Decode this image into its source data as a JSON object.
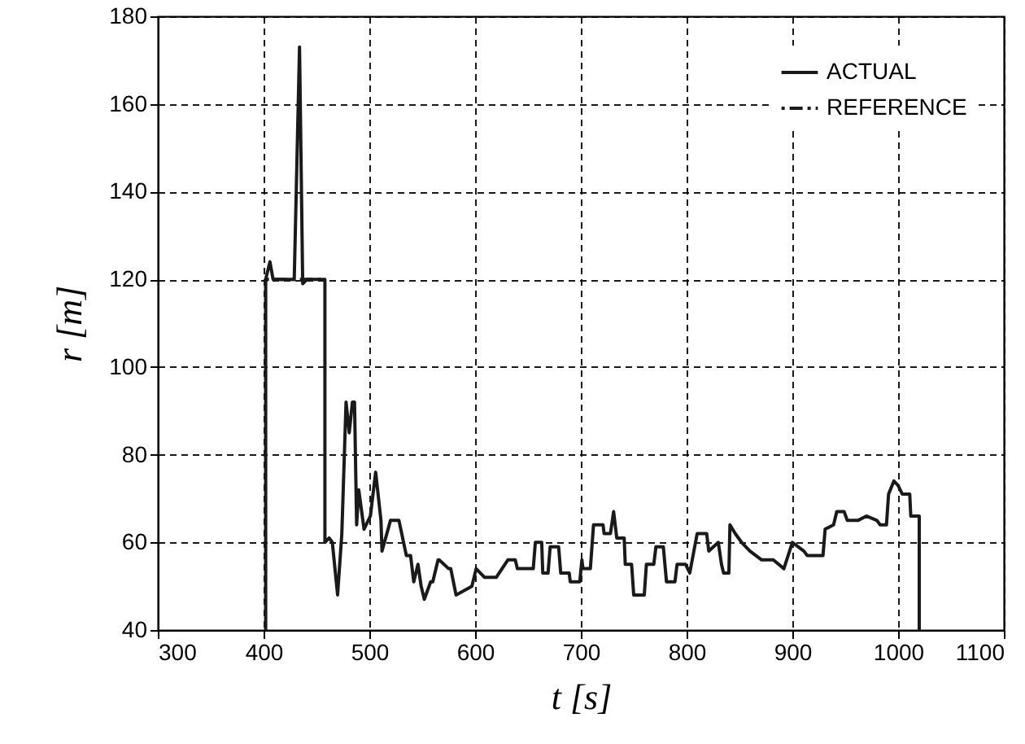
{
  "chart_data": {
    "type": "line",
    "xlabel": "t [s]",
    "ylabel": "r [m]",
    "xlim": [
      300,
      1100
    ],
    "ylim": [
      40,
      180
    ],
    "xticks": [
      300,
      400,
      500,
      600,
      700,
      800,
      900,
      1000,
      1100
    ],
    "yticks": [
      40,
      60,
      80,
      100,
      120,
      140,
      160,
      180
    ],
    "grid": true,
    "legend": "top right",
    "marker": "none",
    "series": [
      {
        "name": "ACTUAL",
        "color": "#1a1a1a",
        "line_style": "solid",
        "x": [
          402,
          402,
          406,
          409,
          429,
          434,
          437,
          441,
          458,
          458,
          462,
          465,
          470,
          474,
          478,
          481,
          484,
          486,
          488,
          490,
          495,
          501,
          506,
          511,
          512,
          520,
          528,
          535,
          539,
          542,
          546,
          549,
          552,
          558,
          560,
          565,
          566,
          575,
          577,
          582,
          597,
          601,
          609,
          620,
          631,
          638,
          640,
          655,
          657,
          663,
          664,
          669,
          671,
          679,
          681,
          689,
          690,
          699,
          701,
          702,
          709,
          712,
          721,
          722,
          728,
          731,
          734,
          741,
          742,
          748,
          750,
          760,
          762,
          769,
          771,
          778,
          781,
          789,
          791,
          799,
          803,
          810,
          819,
          821,
          830,
          833,
          835,
          840,
          841,
          846,
          852,
          860,
          871,
          882,
          892,
          900,
          911,
          914,
          921,
          929,
          931,
          939,
          942,
          949,
          952,
          962,
          970,
          980,
          983,
          989,
          991,
          996,
          1000,
          1004,
          1011,
          1012,
          1020,
          1020
        ],
        "values": [
          40,
          120,
          124,
          120,
          120,
          173,
          119,
          120,
          120,
          60,
          61,
          60,
          48,
          62,
          92,
          85,
          92,
          92,
          64,
          72,
          63,
          66,
          76,
          65,
          58,
          65,
          65,
          57,
          57,
          51,
          55,
          50,
          47,
          51,
          51,
          56,
          56,
          54,
          54,
          48,
          50,
          54,
          52,
          52,
          56,
          56,
          54,
          54,
          60,
          60,
          53,
          53,
          59,
          59,
          53,
          53,
          51,
          51,
          56,
          54,
          54,
          64,
          64,
          62,
          62,
          67,
          61,
          61,
          55,
          55,
          48,
          48,
          55,
          55,
          59,
          59,
          51,
          51,
          55,
          55,
          53,
          62,
          62,
          58,
          60,
          55,
          53,
          53,
          64,
          62,
          60,
          58,
          56,
          56,
          54,
          60,
          58,
          57,
          57,
          57,
          63,
          64,
          67,
          67,
          65,
          65,
          66,
          65,
          64,
          64,
          71,
          74,
          73,
          71,
          71,
          66,
          66,
          40
        ]
      },
      {
        "name": "REFERENCE",
        "color": "#1a1a1a",
        "line_style": "dashdot",
        "x": [
          402,
          458
        ],
        "values": [
          120,
          120
        ]
      }
    ]
  }
}
